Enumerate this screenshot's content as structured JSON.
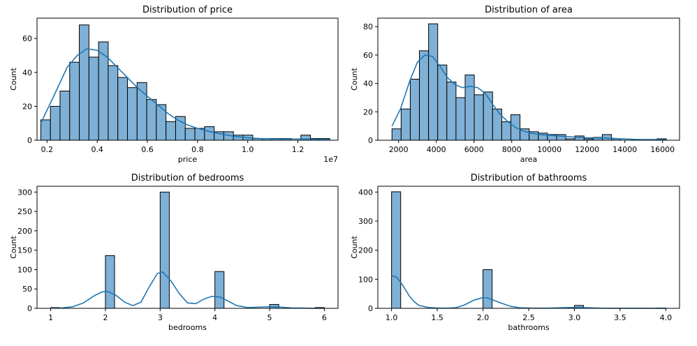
{
  "colors": {
    "bar_fill": "#7fb0d6",
    "bar_edge": "#000000",
    "kde": "#1f77b4"
  },
  "chart_data": [
    {
      "type": "bar",
      "title": "Distribution of price",
      "xlabel": "price",
      "ylabel": "Count",
      "offset_text": "1e7",
      "xlim": [
        1600000,
        13600000
      ],
      "ylim": [
        0,
        72
      ],
      "x_ticks": [
        {
          "value": 2000000,
          "label": "0.2"
        },
        {
          "value": 4000000,
          "label": "0.4"
        },
        {
          "value": 6000000,
          "label": "0.6"
        },
        {
          "value": 8000000,
          "label": "0.8"
        },
        {
          "value": 10000000,
          "label": "1.0"
        },
        {
          "value": 12000000,
          "label": "1.2"
        }
      ],
      "y_ticks": [
        {
          "value": 0,
          "label": "0"
        },
        {
          "value": 20,
          "label": "20"
        },
        {
          "value": 40,
          "label": "40"
        },
        {
          "value": 60,
          "label": "60"
        }
      ],
      "bin_start": 1750000,
      "bin_width": 384000,
      "counts": [
        12,
        20,
        29,
        46,
        68,
        49,
        58,
        44,
        37,
        31,
        34,
        24,
        21,
        11,
        14,
        7,
        7,
        8,
        5,
        5,
        3,
        3,
        1,
        1,
        1,
        1,
        0,
        3,
        1,
        1
      ],
      "kde": [
        [
          1750000,
          10
        ],
        [
          2300000,
          27
        ],
        [
          2800000,
          43
        ],
        [
          3200000,
          50
        ],
        [
          3600000,
          54
        ],
        [
          4000000,
          53
        ],
        [
          4400000,
          49
        ],
        [
          4800000,
          43
        ],
        [
          5200000,
          37
        ],
        [
          5600000,
          31
        ],
        [
          6000000,
          26
        ],
        [
          6400000,
          21
        ],
        [
          6800000,
          16
        ],
        [
          7200000,
          12
        ],
        [
          7600000,
          9
        ],
        [
          8000000,
          7
        ],
        [
          8500000,
          5
        ],
        [
          9000000,
          3.5
        ],
        [
          9500000,
          2.2
        ],
        [
          10000000,
          1.4
        ],
        [
          10500000,
          1
        ],
        [
          11000000,
          0.8
        ],
        [
          11500000,
          0.7
        ],
        [
          12000000,
          0.7
        ],
        [
          12500000,
          0.6
        ],
        [
          13000000,
          0.4
        ],
        [
          13300000,
          0.3
        ]
      ]
    },
    {
      "type": "bar",
      "title": "Distribution of area",
      "xlabel": "area",
      "ylabel": "Count",
      "offset_text": "",
      "xlim": [
        900,
        16900
      ],
      "ylim": [
        0,
        86
      ],
      "x_ticks": [
        {
          "value": 2000,
          "label": "2000"
        },
        {
          "value": 4000,
          "label": "4000"
        },
        {
          "value": 6000,
          "label": "6000"
        },
        {
          "value": 8000,
          "label": "8000"
        },
        {
          "value": 10000,
          "label": "10000"
        },
        {
          "value": 12000,
          "label": "12000"
        },
        {
          "value": 14000,
          "label": "14000"
        },
        {
          "value": 16000,
          "label": "16000"
        }
      ],
      "y_ticks": [
        {
          "value": 0,
          "label": "0"
        },
        {
          "value": 20,
          "label": "20"
        },
        {
          "value": 40,
          "label": "40"
        },
        {
          "value": 60,
          "label": "60"
        },
        {
          "value": 80,
          "label": "80"
        }
      ],
      "bin_start": 1650,
      "bin_width": 485,
      "counts": [
        8,
        22,
        43,
        63,
        82,
        53,
        41,
        30,
        46,
        32,
        34,
        22,
        13,
        18,
        8,
        6,
        5,
        4,
        4,
        1,
        3,
        1,
        2,
        4,
        1,
        0,
        0,
        0,
        0,
        1
      ],
      "kde": [
        [
          1650,
          10
        ],
        [
          2100,
          22
        ],
        [
          2600,
          42
        ],
        [
          3000,
          55
        ],
        [
          3400,
          60
        ],
        [
          3800,
          59
        ],
        [
          4200,
          52
        ],
        [
          4600,
          44
        ],
        [
          5000,
          39
        ],
        [
          5400,
          37
        ],
        [
          5800,
          38
        ],
        [
          6200,
          37
        ],
        [
          6600,
          33
        ],
        [
          7000,
          25
        ],
        [
          7400,
          18
        ],
        [
          7800,
          13
        ],
        [
          8200,
          9
        ],
        [
          8600,
          6.5
        ],
        [
          9000,
          5
        ],
        [
          9500,
          4
        ],
        [
          10000,
          3.5
        ],
        [
          10500,
          3
        ],
        [
          11000,
          2.5
        ],
        [
          11500,
          2
        ],
        [
          12000,
          1.7
        ],
        [
          12500,
          1.6
        ],
        [
          13000,
          1.5
        ],
        [
          13500,
          1.2
        ],
        [
          14000,
          0.9
        ],
        [
          14500,
          0.6
        ],
        [
          15000,
          0.5
        ],
        [
          15500,
          0.5
        ],
        [
          16000,
          0.5
        ],
        [
          16200,
          0.4
        ]
      ]
    },
    {
      "type": "bar",
      "title": "Distribution of bedrooms",
      "xlabel": "bedrooms",
      "ylabel": "Count",
      "offset_text": "",
      "xlim": [
        0.75,
        6.25
      ],
      "ylim": [
        0,
        315
      ],
      "x_ticks": [
        {
          "value": 1,
          "label": "1"
        },
        {
          "value": 2,
          "label": "2"
        },
        {
          "value": 3,
          "label": "3"
        },
        {
          "value": 4,
          "label": "4"
        },
        {
          "value": 5,
          "label": "5"
        },
        {
          "value": 6,
          "label": "6"
        }
      ],
      "y_ticks": [
        {
          "value": 0,
          "label": "0"
        },
        {
          "value": 50,
          "label": "50"
        },
        {
          "value": 100,
          "label": "100"
        },
        {
          "value": 150,
          "label": "150"
        },
        {
          "value": 200,
          "label": "200"
        },
        {
          "value": 250,
          "label": "250"
        },
        {
          "value": 300,
          "label": "300"
        }
      ],
      "bars": [
        {
          "x": 1.0,
          "w": 0.167,
          "count": 2
        },
        {
          "x": 2.0,
          "w": 0.167,
          "count": 136
        },
        {
          "x": 3.0,
          "w": 0.167,
          "count": 300
        },
        {
          "x": 4.0,
          "w": 0.167,
          "count": 95
        },
        {
          "x": 5.0,
          "w": 0.167,
          "count": 10
        },
        {
          "x": 5.833,
          "w": 0.167,
          "count": 2
        }
      ],
      "kde": [
        [
          1.0,
          0.5
        ],
        [
          1.2,
          1
        ],
        [
          1.4,
          4
        ],
        [
          1.6,
          14
        ],
        [
          1.8,
          33
        ],
        [
          1.95,
          43
        ],
        [
          2.05,
          43
        ],
        [
          2.2,
          33
        ],
        [
          2.35,
          16
        ],
        [
          2.5,
          7
        ],
        [
          2.65,
          16
        ],
        [
          2.8,
          55
        ],
        [
          2.95,
          90
        ],
        [
          3.05,
          94
        ],
        [
          3.2,
          70
        ],
        [
          3.35,
          38
        ],
        [
          3.5,
          14
        ],
        [
          3.65,
          12
        ],
        [
          3.8,
          24
        ],
        [
          3.95,
          31
        ],
        [
          4.1,
          29
        ],
        [
          4.25,
          18
        ],
        [
          4.4,
          7
        ],
        [
          4.6,
          2
        ],
        [
          4.8,
          3
        ],
        [
          5.0,
          4
        ],
        [
          5.2,
          3
        ],
        [
          5.4,
          1
        ],
        [
          5.6,
          0.5
        ],
        [
          5.8,
          0.2
        ],
        [
          6.0,
          0.1
        ]
      ]
    },
    {
      "type": "bar",
      "title": "Distribution of bathrooms",
      "xlabel": "bathrooms",
      "ylabel": "Count",
      "offset_text": "",
      "xlim": [
        0.85,
        4.15
      ],
      "ylim": [
        0,
        420
      ],
      "x_ticks": [
        {
          "value": 1.0,
          "label": "1.0"
        },
        {
          "value": 1.5,
          "label": "1.5"
        },
        {
          "value": 2.0,
          "label": "2.0"
        },
        {
          "value": 2.5,
          "label": "2.5"
        },
        {
          "value": 3.0,
          "label": "3.0"
        },
        {
          "value": 3.5,
          "label": "3.5"
        },
        {
          "value": 4.0,
          "label": "4.0"
        }
      ],
      "y_ticks": [
        {
          "value": 0,
          "label": "0"
        },
        {
          "value": 100,
          "label": "100"
        },
        {
          "value": 200,
          "label": "200"
        },
        {
          "value": 300,
          "label": "300"
        },
        {
          "value": 400,
          "label": "400"
        }
      ],
      "bars": [
        {
          "x": 1.0,
          "w": 0.1,
          "count": 401
        },
        {
          "x": 2.0,
          "w": 0.1,
          "count": 133
        },
        {
          "x": 3.0,
          "w": 0.1,
          "count": 10
        },
        {
          "x": 3.9,
          "w": 0.1,
          "count": 1
        }
      ],
      "kde": [
        [
          1.0,
          112
        ],
        [
          1.05,
          108
        ],
        [
          1.1,
          90
        ],
        [
          1.15,
          65
        ],
        [
          1.2,
          40
        ],
        [
          1.25,
          22
        ],
        [
          1.3,
          10
        ],
        [
          1.4,
          3
        ],
        [
          1.5,
          1
        ],
        [
          1.6,
          0.5
        ],
        [
          1.7,
          2
        ],
        [
          1.8,
          12
        ],
        [
          1.9,
          28
        ],
        [
          2.0,
          37
        ],
        [
          2.05,
          36
        ],
        [
          2.1,
          30
        ],
        [
          2.2,
          18
        ],
        [
          2.3,
          7
        ],
        [
          2.4,
          2
        ],
        [
          2.5,
          1
        ],
        [
          2.7,
          0.5
        ],
        [
          2.85,
          2
        ],
        [
          2.95,
          3
        ],
        [
          3.05,
          3
        ],
        [
          3.15,
          2
        ],
        [
          3.3,
          0.5
        ],
        [
          3.5,
          0.2
        ],
        [
          3.8,
          0.2
        ],
        [
          4.0,
          0.1
        ]
      ]
    }
  ]
}
